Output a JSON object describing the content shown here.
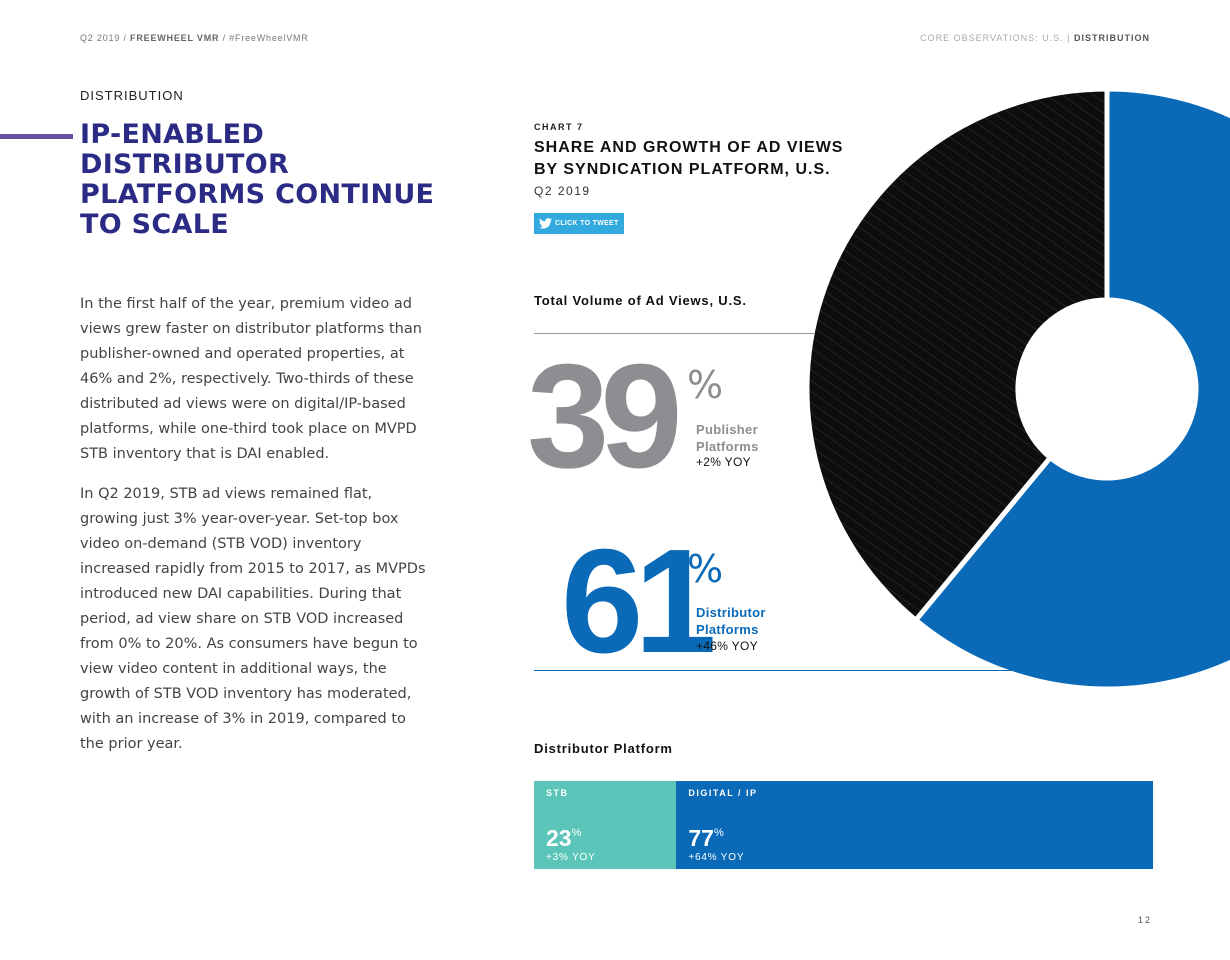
{
  "header": {
    "left": {
      "prefix": "Q2 2019 /",
      "brand": "FREEWHEEL VMR",
      "suffix": "/ #FreeWheelVMR"
    },
    "right": {
      "section": "CORE OBSERVATIONS: U.S.  |",
      "current": "DISTRIBUTION"
    }
  },
  "section_label": "DISTRIBUTION",
  "headline": "IP-ENABLED DISTRIBUTOR PLATFORMS CONTINUE TO SCALE",
  "body": {
    "p1": "In the first half of the year, premium video ad views grew faster on distributor platforms than publisher-owned and operated properties, at 46% and 2%, respectively. Two-thirds of these distributed ad views were on digital/IP-based platforms, while one-third took place on MVPD STB inventory that is DAI enabled.",
    "p2": "In Q2 2019, STB ad views remained flat, growing just 3% year-over-year. Set-top box video on-demand (STB VOD) inventory increased rapidly from 2015 to 2017, as MVPDs introduced new DAI capabilities. During that period, ad view share on STB VOD increased from 0% to 20%. As consumers have begun to view video content in additional ways, the growth of STB VOD inventory has moderated, with an increase of 3% in 2019, compared to the prior year."
  },
  "tweet_label": "CLICK TO TWEET",
  "page_number": "12",
  "colors": {
    "publisher": "#0d0d0d",
    "distributor": "#0a6ab8",
    "stb": "#5cc5b9",
    "headline": "#2b2b86",
    "accent": "#6a4fa0"
  },
  "chart_data": [
    {
      "type": "pie",
      "chart_number": "CHART 7",
      "title": "SHARE AND GROWTH OF AD VIEWS BY SYNDICATION PLATFORM, U.S.",
      "subtitle": "Q2 2019",
      "label": "Total Volume of Ad Views, U.S.",
      "series": [
        {
          "name": "Publisher Platforms",
          "value": 39,
          "value_text": "39",
          "unit": "%",
          "yoy": "+2% YOY"
        },
        {
          "name": "Distributor Platforms",
          "value": 61,
          "value_text": "61",
          "unit": "%",
          "yoy": "+46% YOY"
        }
      ]
    },
    {
      "type": "bar",
      "orientation": "stacked-horizontal",
      "title": "Distributor Platform",
      "series": [
        {
          "name": "STB",
          "value": 23,
          "value_text": "23",
          "unit": "%",
          "yoy": "+3% YOY"
        },
        {
          "name": "DIGITAL / IP",
          "value": 77,
          "value_text": "77",
          "unit": "%",
          "yoy": "+64% YOY"
        }
      ]
    }
  ]
}
